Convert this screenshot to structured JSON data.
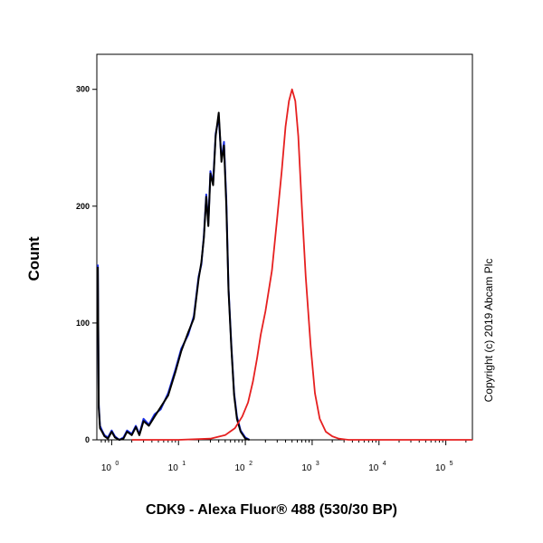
{
  "chart_data": {
    "type": "line",
    "title": "",
    "xlabel": "CDK9 - Alexa Fluor® 488 (530/30 BP)",
    "ylabel": "Count",
    "xscale": "log",
    "xlim": [
      0.6,
      250000
    ],
    "ylim": [
      0,
      330
    ],
    "y_ticks": [
      {
        "value": 0,
        "label": "0"
      },
      {
        "value": 100,
        "label": "100"
      },
      {
        "value": 200,
        "label": "200"
      },
      {
        "value": 300,
        "label": "300"
      }
    ],
    "x_ticks": [
      {
        "value": 1,
        "base": "10",
        "exp": "0"
      },
      {
        "value": 10,
        "base": "10",
        "exp": "1"
      },
      {
        "value": 100,
        "base": "10",
        "exp": "2"
      },
      {
        "value": 1000,
        "base": "10",
        "exp": "3"
      },
      {
        "value": 10000,
        "base": "10",
        "exp": "4"
      },
      {
        "value": 100000,
        "base": "10",
        "exp": "5"
      }
    ],
    "series": [
      {
        "color": "#1a2ee6",
        "x": [
          0.62,
          0.64,
          0.67,
          0.72,
          0.78,
          0.88,
          1.0,
          1.12,
          1.3,
          1.5,
          1.7,
          2.0,
          2.3,
          2.6,
          3.0,
          3.6,
          4.4,
          5.4,
          7.0,
          9.0,
          11,
          14,
          17,
          20,
          22,
          24,
          26,
          28,
          30,
          33,
          36,
          40,
          44,
          48,
          52,
          56,
          62,
          68,
          75,
          85,
          100,
          115
        ],
        "y": [
          150,
          30,
          12,
          8,
          4,
          2,
          8,
          3,
          0,
          2,
          8,
          5,
          12,
          5,
          18,
          13,
          22,
          26,
          40,
          60,
          78,
          90,
          106,
          140,
          150,
          175,
          210,
          185,
          230,
          220,
          262,
          276,
          240,
          255,
          205,
          130,
          80,
          40,
          20,
          8,
          2,
          0
        ]
      },
      {
        "color": "#000000",
        "x": [
          0.62,
          0.64,
          0.67,
          0.72,
          0.78,
          0.88,
          1.0,
          1.12,
          1.3,
          1.5,
          1.7,
          2.0,
          2.3,
          2.6,
          3.0,
          3.6,
          4.4,
          5.4,
          7.0,
          9.0,
          11,
          14,
          17,
          20,
          22,
          24,
          26,
          28,
          30,
          33,
          36,
          40,
          44,
          48,
          52,
          56,
          62,
          68,
          75,
          85,
          100,
          115
        ],
        "y": [
          148,
          28,
          10,
          7,
          3,
          1,
          7,
          2,
          0,
          1,
          7,
          4,
          11,
          4,
          16,
          12,
          20,
          28,
          38,
          58,
          76,
          92,
          104,
          138,
          152,
          173,
          208,
          183,
          228,
          218,
          260,
          280,
          238,
          252,
          200,
          128,
          78,
          38,
          18,
          7,
          1,
          0
        ]
      },
      {
        "color": "#e62020",
        "x": [
          2,
          10,
          30,
          50,
          70,
          90,
          110,
          130,
          150,
          170,
          200,
          250,
          300,
          350,
          400,
          450,
          500,
          560,
          620,
          700,
          800,
          950,
          1100,
          1300,
          1600,
          2000,
          2500,
          3500,
          10000,
          100000,
          250000
        ],
        "y": [
          0,
          0,
          1,
          4,
          10,
          20,
          32,
          50,
          70,
          90,
          110,
          145,
          190,
          230,
          268,
          290,
          300,
          290,
          260,
          200,
          140,
          80,
          40,
          18,
          7,
          3,
          1,
          0,
          0,
          0,
          0
        ]
      }
    ],
    "annotation": "Copyright (c) 2019 Abcam Plc"
  }
}
